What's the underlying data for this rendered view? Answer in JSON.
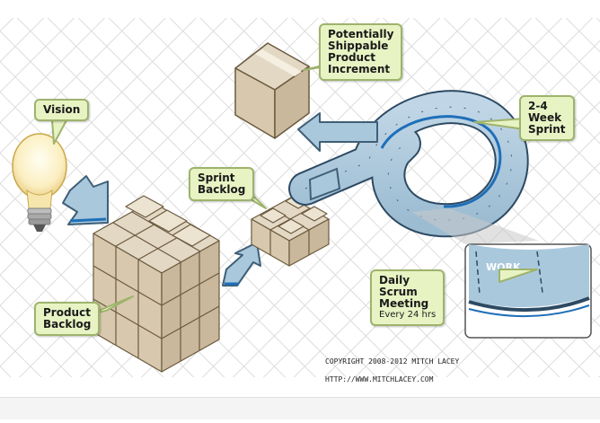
{
  "labels": {
    "vision": "Vision",
    "product_backlog": [
      "Product",
      "Backlog"
    ],
    "sprint_backlog": [
      "Sprint",
      "Backlog"
    ],
    "increment": [
      "Potentially",
      "Shippable",
      "Product",
      "Increment"
    ],
    "sprint": [
      "2-4",
      "Week",
      "Sprint"
    ],
    "daily_scrum": [
      "Daily",
      "Scrum",
      "Meeting"
    ],
    "daily_scrum_sub": "Every 24 hrs",
    "work": "WORK"
  },
  "footer": {
    "copyright": "COPYRIGHT 2008-2012 MITCH LACEY",
    "url": "HTTP://WWW.MITCHLACEY.COM"
  },
  "colors": {
    "callout_fill": "#e8f3c4",
    "callout_border": "#9eb36c",
    "arrow_fill": "#a9c8dc",
    "arrow_stroke": "#3f5f77",
    "box_top": "#e3d8c4",
    "box_side": "#c9b89c",
    "box_front": "#d8c9ae"
  }
}
